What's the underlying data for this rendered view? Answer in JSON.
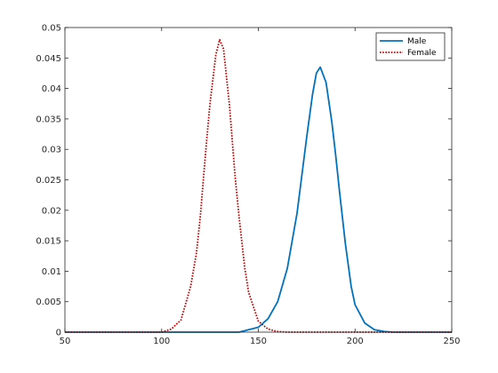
{
  "chart_data": {
    "type": "line",
    "title": "",
    "xlabel": "",
    "ylabel": "",
    "xlim": [
      50,
      250
    ],
    "ylim": [
      0,
      0.05
    ],
    "x_ticks": [
      50,
      100,
      150,
      200,
      250
    ],
    "x_tick_labels": [
      "50",
      "100",
      "150",
      "200",
      "250"
    ],
    "y_ticks": [
      0,
      0.005,
      0.01,
      0.015,
      0.02,
      0.025,
      0.03,
      0.035,
      0.04,
      0.045,
      0.05
    ],
    "y_tick_labels": [
      "0",
      "0.005",
      "0.01",
      "0.015",
      "0.02",
      "0.025",
      "0.03",
      "0.035",
      "0.04",
      "0.045",
      "0.05"
    ],
    "grid": false,
    "legend_position": "top-right",
    "series": [
      {
        "name": "Male",
        "color": "#0072BD",
        "line_style": "solid",
        "x": [
          50,
          140,
          150,
          155,
          160,
          165,
          170,
          172,
          175,
          178,
          180,
          182,
          185,
          188,
          190,
          192,
          195,
          198,
          200,
          205,
          210,
          215,
          220,
          250
        ],
        "y": [
          0,
          0,
          0.0008,
          0.0022,
          0.005,
          0.0105,
          0.0195,
          0.0245,
          0.032,
          0.039,
          0.0425,
          0.0435,
          0.041,
          0.0345,
          0.029,
          0.023,
          0.0145,
          0.0075,
          0.0045,
          0.0015,
          0.0004,
          0.0001,
          0,
          0
        ]
      },
      {
        "name": "Female",
        "color": "#C00000",
        "line_style": "dotted",
        "x": [
          50,
          100,
          105,
          110,
          115,
          118,
          120,
          123,
          125,
          128,
          130,
          132,
          135,
          138,
          140,
          143,
          145,
          150,
          155,
          160,
          165,
          250
        ],
        "y": [
          0,
          0,
          0.0005,
          0.002,
          0.0075,
          0.013,
          0.019,
          0.0305,
          0.0375,
          0.0455,
          0.048,
          0.0465,
          0.0375,
          0.0255,
          0.019,
          0.0105,
          0.0065,
          0.0018,
          0.0005,
          0.0001,
          0,
          0
        ]
      }
    ]
  }
}
